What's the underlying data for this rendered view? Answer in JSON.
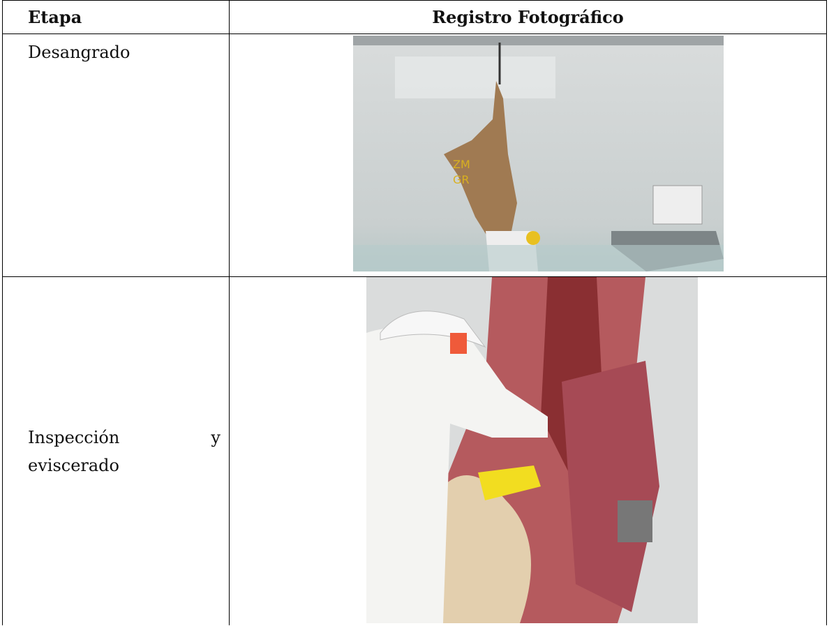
{
  "table": {
    "header": [
      "Etapa",
      "Registro Fotográfico"
    ],
    "rows": [
      [
        "Desangrado"
      ],
      [
        "Inspección y eviscerado"
      ]
    ]
  }
}
